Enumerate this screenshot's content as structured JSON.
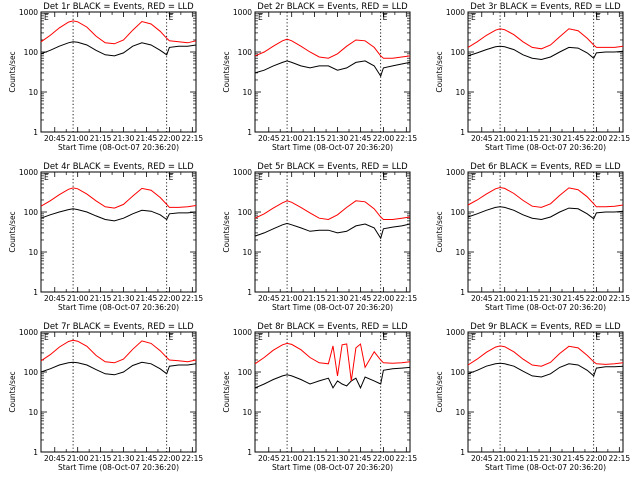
{
  "figure": {
    "x_tick_labels": [
      "20:45",
      "21:00",
      "21:15",
      "21:30",
      "21:45",
      "22:00",
      "22:15"
    ],
    "y_tick_labels": [
      "1",
      "10",
      "100",
      "1000"
    ],
    "ylabel": "Counts/sec",
    "xlabel": "Start Time (08-Oct-07 20:36:20)",
    "colors": {
      "events": "#000000",
      "lld": "#ff0000",
      "marker": "#000000"
    },
    "marker_glyph": "E"
  },
  "chart_data": [
    {
      "type": "line",
      "title": "Det 1r BLACK = Events, RED = LLD",
      "xlabel": "Start Time (08-Oct-07 20:36:20)",
      "ylabel": "Counts/sec",
      "x_range_minutes": [
        20.6,
        22.29
      ],
      "ylim": [
        1,
        1000
      ],
      "y_scale": "log",
      "vlines": [
        20.95,
        21.97
      ],
      "series": [
        {
          "name": "Events",
          "color": "#000000",
          "x": [
            20.6,
            20.7,
            20.8,
            20.9,
            20.95,
            21.0,
            21.1,
            21.2,
            21.3,
            21.4,
            21.5,
            21.6,
            21.7,
            21.8,
            21.9,
            21.97,
            22.0,
            22.1,
            22.2,
            22.29
          ],
          "values": [
            90,
            110,
            140,
            170,
            180,
            175,
            150,
            110,
            85,
            80,
            95,
            140,
            170,
            150,
            110,
            85,
            130,
            140,
            140,
            150
          ]
        },
        {
          "name": "LLD",
          "color": "#ff0000",
          "x": [
            20.6,
            20.7,
            20.8,
            20.9,
            20.95,
            21.0,
            21.1,
            21.2,
            21.3,
            21.4,
            21.5,
            21.6,
            21.7,
            21.8,
            21.9,
            21.97,
            22.0,
            22.1,
            22.2,
            22.29
          ],
          "values": [
            180,
            260,
            400,
            560,
            600,
            570,
            420,
            250,
            170,
            160,
            200,
            350,
            580,
            500,
            330,
            220,
            190,
            180,
            170,
            190
          ]
        }
      ]
    },
    {
      "type": "line",
      "title": "Det 2r BLACK = Events, RED = LLD",
      "xlabel": "Start Time (08-Oct-07 20:36:20)",
      "ylabel": "Counts/sec",
      "x_range_minutes": [
        20.6,
        22.29
      ],
      "ylim": [
        1,
        1000
      ],
      "y_scale": "log",
      "vlines": [
        20.95,
        21.97
      ],
      "series": [
        {
          "name": "Events",
          "color": "#000000",
          "x": [
            20.6,
            20.7,
            20.8,
            20.9,
            20.95,
            21.0,
            21.1,
            21.2,
            21.3,
            21.4,
            21.5,
            21.6,
            21.7,
            21.8,
            21.9,
            21.97,
            22.0,
            22.1,
            22.2,
            22.29
          ],
          "values": [
            30,
            35,
            45,
            55,
            60,
            55,
            45,
            40,
            45,
            45,
            35,
            40,
            55,
            60,
            45,
            25,
            40,
            45,
            50,
            55
          ]
        },
        {
          "name": "LLD",
          "color": "#ff0000",
          "x": [
            20.6,
            20.7,
            20.8,
            20.9,
            20.95,
            21.0,
            21.1,
            21.2,
            21.3,
            21.4,
            21.5,
            21.6,
            21.7,
            21.8,
            21.9,
            21.97,
            22.0,
            22.1,
            22.2,
            22.29
          ],
          "values": [
            80,
            100,
            140,
            190,
            210,
            190,
            140,
            100,
            75,
            70,
            90,
            140,
            200,
            190,
            130,
            80,
            70,
            70,
            75,
            80
          ]
        }
      ]
    },
    {
      "type": "line",
      "title": "Det 3r BLACK = Events, RED = LLD",
      "xlabel": "Start Time (08-Oct-07 20:36:20)",
      "ylabel": "Counts/sec",
      "x_range_minutes": [
        20.6,
        22.29
      ],
      "ylim": [
        1,
        1000
      ],
      "y_scale": "log",
      "vlines": [
        20.95,
        21.97
      ],
      "series": [
        {
          "name": "Events",
          "color": "#000000",
          "x": [
            20.6,
            20.7,
            20.8,
            20.9,
            20.95,
            21.0,
            21.1,
            21.2,
            21.3,
            21.4,
            21.5,
            21.6,
            21.7,
            21.8,
            21.9,
            21.97,
            22.0,
            22.1,
            22.2,
            22.29
          ],
          "values": [
            80,
            95,
            115,
            135,
            140,
            135,
            115,
            85,
            70,
            65,
            75,
            100,
            130,
            125,
            95,
            70,
            95,
            100,
            100,
            105
          ]
        },
        {
          "name": "LLD",
          "color": "#ff0000",
          "x": [
            20.6,
            20.7,
            20.8,
            20.9,
            20.95,
            21.0,
            21.1,
            21.2,
            21.3,
            21.4,
            21.5,
            21.6,
            21.7,
            21.8,
            21.9,
            21.97,
            22.0,
            22.1,
            22.2,
            22.29
          ],
          "values": [
            130,
            180,
            260,
            350,
            380,
            360,
            270,
            180,
            130,
            120,
            150,
            240,
            380,
            340,
            220,
            150,
            130,
            130,
            130,
            140
          ]
        }
      ]
    },
    {
      "type": "line",
      "title": "Det 4r BLACK = Events, RED = LLD",
      "xlabel": "Start Time (08-Oct-07 20:36:20)",
      "ylabel": "Counts/sec",
      "x_range_minutes": [
        20.6,
        22.29
      ],
      "ylim": [
        1,
        1000
      ],
      "y_scale": "log",
      "vlines": [
        20.95,
        21.97
      ],
      "series": [
        {
          "name": "Events",
          "color": "#000000",
          "x": [
            20.6,
            20.7,
            20.8,
            20.9,
            20.95,
            21.0,
            21.1,
            21.2,
            21.3,
            21.4,
            21.5,
            21.6,
            21.7,
            21.8,
            21.9,
            21.97,
            22.0,
            22.1,
            22.2,
            22.29
          ],
          "values": [
            70,
            85,
            100,
            115,
            120,
            115,
            100,
            80,
            65,
            60,
            70,
            90,
            110,
            105,
            85,
            65,
            90,
            95,
            95,
            100
          ]
        },
        {
          "name": "LLD",
          "color": "#ff0000",
          "x": [
            20.6,
            20.7,
            20.8,
            20.9,
            20.95,
            21.0,
            21.1,
            21.2,
            21.3,
            21.4,
            21.5,
            21.6,
            21.7,
            21.8,
            21.9,
            21.97,
            22.0,
            22.1,
            22.2,
            22.29
          ],
          "values": [
            140,
            190,
            270,
            370,
            400,
            380,
            280,
            190,
            135,
            125,
            155,
            250,
            390,
            350,
            230,
            155,
            130,
            130,
            135,
            145
          ]
        }
      ]
    },
    {
      "type": "line",
      "title": "Det 5r BLACK = Events, RED = LLD",
      "xlabel": "Start Time (08-Oct-07 20:36:20)",
      "ylabel": "Counts/sec",
      "x_range_minutes": [
        20.6,
        22.29
      ],
      "ylim": [
        1,
        1000
      ],
      "y_scale": "log",
      "vlines": [
        20.95,
        21.97
      ],
      "series": [
        {
          "name": "Events",
          "color": "#000000",
          "x": [
            20.6,
            20.7,
            20.8,
            20.9,
            20.95,
            21.0,
            21.1,
            21.2,
            21.3,
            21.4,
            21.5,
            21.6,
            21.7,
            21.8,
            21.9,
            21.97,
            22.0,
            22.1,
            22.2,
            22.29
          ],
          "values": [
            25,
            30,
            38,
            48,
            52,
            48,
            40,
            33,
            35,
            35,
            30,
            33,
            45,
            50,
            40,
            22,
            38,
            42,
            45,
            50
          ]
        },
        {
          "name": "LLD",
          "color": "#ff0000",
          "x": [
            20.6,
            20.7,
            20.8,
            20.9,
            20.95,
            21.0,
            21.1,
            21.2,
            21.3,
            21.4,
            21.5,
            21.6,
            21.7,
            21.8,
            21.9,
            21.97,
            22.0,
            22.1,
            22.2,
            22.29
          ],
          "values": [
            70,
            90,
            125,
            170,
            190,
            175,
            130,
            95,
            70,
            65,
            85,
            130,
            190,
            180,
            120,
            75,
            65,
            65,
            70,
            75
          ]
        }
      ]
    },
    {
      "type": "line",
      "title": "Det 6r BLACK = Events, RED = LLD",
      "xlabel": "Start Time (08-Oct-07 20:36:20)",
      "ylabel": "Counts/sec",
      "x_range_minutes": [
        20.6,
        22.29
      ],
      "ylim": [
        1,
        1000
      ],
      "y_scale": "log",
      "vlines": [
        20.95,
        21.97
      ],
      "series": [
        {
          "name": "Events",
          "color": "#000000",
          "x": [
            20.6,
            20.7,
            20.8,
            20.9,
            20.95,
            21.0,
            21.1,
            21.2,
            21.3,
            21.4,
            21.5,
            21.6,
            21.7,
            21.8,
            21.9,
            21.97,
            22.0,
            22.1,
            22.2,
            22.29
          ],
          "values": [
            75,
            90,
            110,
            130,
            135,
            130,
            110,
            85,
            70,
            65,
            75,
            100,
            125,
            120,
            90,
            68,
            95,
            100,
            100,
            105
          ]
        },
        {
          "name": "LLD",
          "color": "#ff0000",
          "x": [
            20.6,
            20.7,
            20.8,
            20.9,
            20.95,
            21.0,
            21.1,
            21.2,
            21.3,
            21.4,
            21.5,
            21.6,
            21.7,
            21.8,
            21.9,
            21.97,
            22.0,
            22.1,
            22.2,
            22.29
          ],
          "values": [
            150,
            200,
            280,
            380,
            410,
            390,
            290,
            195,
            140,
            130,
            160,
            260,
            400,
            360,
            240,
            160,
            135,
            135,
            140,
            150
          ]
        }
      ]
    },
    {
      "type": "line",
      "title": "Det 7r BLACK = Events, RED = LLD",
      "xlabel": "Start Time (08-Oct-07 20:36:20)",
      "ylabel": "Counts/sec",
      "x_range_minutes": [
        20.6,
        22.29
      ],
      "ylim": [
        1,
        1000
      ],
      "y_scale": "log",
      "vlines": [
        20.95,
        21.97
      ],
      "series": [
        {
          "name": "Events",
          "color": "#000000",
          "x": [
            20.6,
            20.7,
            20.8,
            20.9,
            20.95,
            21.0,
            21.1,
            21.2,
            21.3,
            21.4,
            21.5,
            21.6,
            21.7,
            21.8,
            21.9,
            21.97,
            22.0,
            22.1,
            22.2,
            22.29
          ],
          "values": [
            100,
            120,
            150,
            170,
            175,
            170,
            150,
            115,
            90,
            85,
            100,
            145,
            175,
            160,
            120,
            90,
            140,
            150,
            150,
            160
          ]
        },
        {
          "name": "LLD",
          "color": "#ff0000",
          "x": [
            20.6,
            20.7,
            20.8,
            20.9,
            20.95,
            21.0,
            21.1,
            21.2,
            21.3,
            21.4,
            21.5,
            21.6,
            21.7,
            21.8,
            21.9,
            21.97,
            22.0,
            22.1,
            22.2,
            22.29
          ],
          "values": [
            190,
            270,
            420,
            580,
            620,
            590,
            440,
            260,
            180,
            170,
            210,
            370,
            600,
            520,
            340,
            230,
            200,
            190,
            180,
            200
          ]
        }
      ]
    },
    {
      "type": "line",
      "title": "Det 8r BLACK = Events, RED = LLD",
      "xlabel": "Start Time (08-Oct-07 20:36:20)",
      "ylabel": "Counts/sec",
      "x_range_minutes": [
        20.6,
        22.29
      ],
      "ylim": [
        1,
        1000
      ],
      "y_scale": "log",
      "vlines": [
        20.95,
        21.97
      ],
      "series": [
        {
          "name": "Events",
          "color": "#000000",
          "x": [
            20.6,
            20.7,
            20.8,
            20.9,
            20.95,
            21.0,
            21.1,
            21.2,
            21.3,
            21.4,
            21.45,
            21.5,
            21.55,
            21.6,
            21.65,
            21.7,
            21.75,
            21.8,
            21.9,
            21.97,
            22.0,
            22.1,
            22.2,
            22.29
          ],
          "values": [
            40,
            50,
            65,
            80,
            85,
            80,
            65,
            50,
            60,
            70,
            40,
            60,
            50,
            45,
            60,
            70,
            40,
            75,
            60,
            50,
            110,
            120,
            125,
            130
          ]
        },
        {
          "name": "LLD",
          "color": "#ff0000",
          "x": [
            20.6,
            20.7,
            20.8,
            20.9,
            20.95,
            21.0,
            21.1,
            21.2,
            21.3,
            21.4,
            21.45,
            21.5,
            21.55,
            21.6,
            21.65,
            21.7,
            21.75,
            21.8,
            21.9,
            21.97,
            22.0,
            22.1,
            22.2,
            22.29
          ],
          "values": [
            160,
            230,
            350,
            480,
            520,
            490,
            360,
            230,
            170,
            160,
            450,
            80,
            480,
            500,
            60,
            400,
            500,
            130,
            320,
            200,
            170,
            165,
            170,
            180
          ]
        }
      ]
    },
    {
      "type": "line",
      "title": "Det 9r BLACK = Events, RED = LLD",
      "xlabel": "Start Time (08-Oct-07 20:36:20)",
      "ylabel": "Counts/sec",
      "x_range_minutes": [
        20.6,
        22.29
      ],
      "ylim": [
        1,
        1000
      ],
      "y_scale": "log",
      "vlines": [
        20.95,
        21.97
      ],
      "series": [
        {
          "name": "Events",
          "color": "#000000",
          "x": [
            20.6,
            20.7,
            20.8,
            20.9,
            20.95,
            21.0,
            21.1,
            21.2,
            21.3,
            21.4,
            21.5,
            21.6,
            21.7,
            21.8,
            21.9,
            21.97,
            22.0,
            22.1,
            22.2,
            22.29
          ],
          "values": [
            90,
            110,
            140,
            160,
            165,
            160,
            140,
            105,
            80,
            75,
            90,
            130,
            160,
            150,
            110,
            80,
            125,
            135,
            135,
            140
          ]
        },
        {
          "name": "LLD",
          "color": "#ff0000",
          "x": [
            20.6,
            20.7,
            20.8,
            20.9,
            20.95,
            21.0,
            21.1,
            21.2,
            21.3,
            21.4,
            21.5,
            21.6,
            21.7,
            21.8,
            21.9,
            21.97,
            22.0,
            22.1,
            22.2,
            22.29
          ],
          "values": [
            150,
            210,
            310,
            420,
            450,
            430,
            320,
            210,
            150,
            140,
            175,
            290,
            440,
            400,
            260,
            180,
            160,
            155,
            160,
            170
          ]
        }
      ]
    }
  ]
}
